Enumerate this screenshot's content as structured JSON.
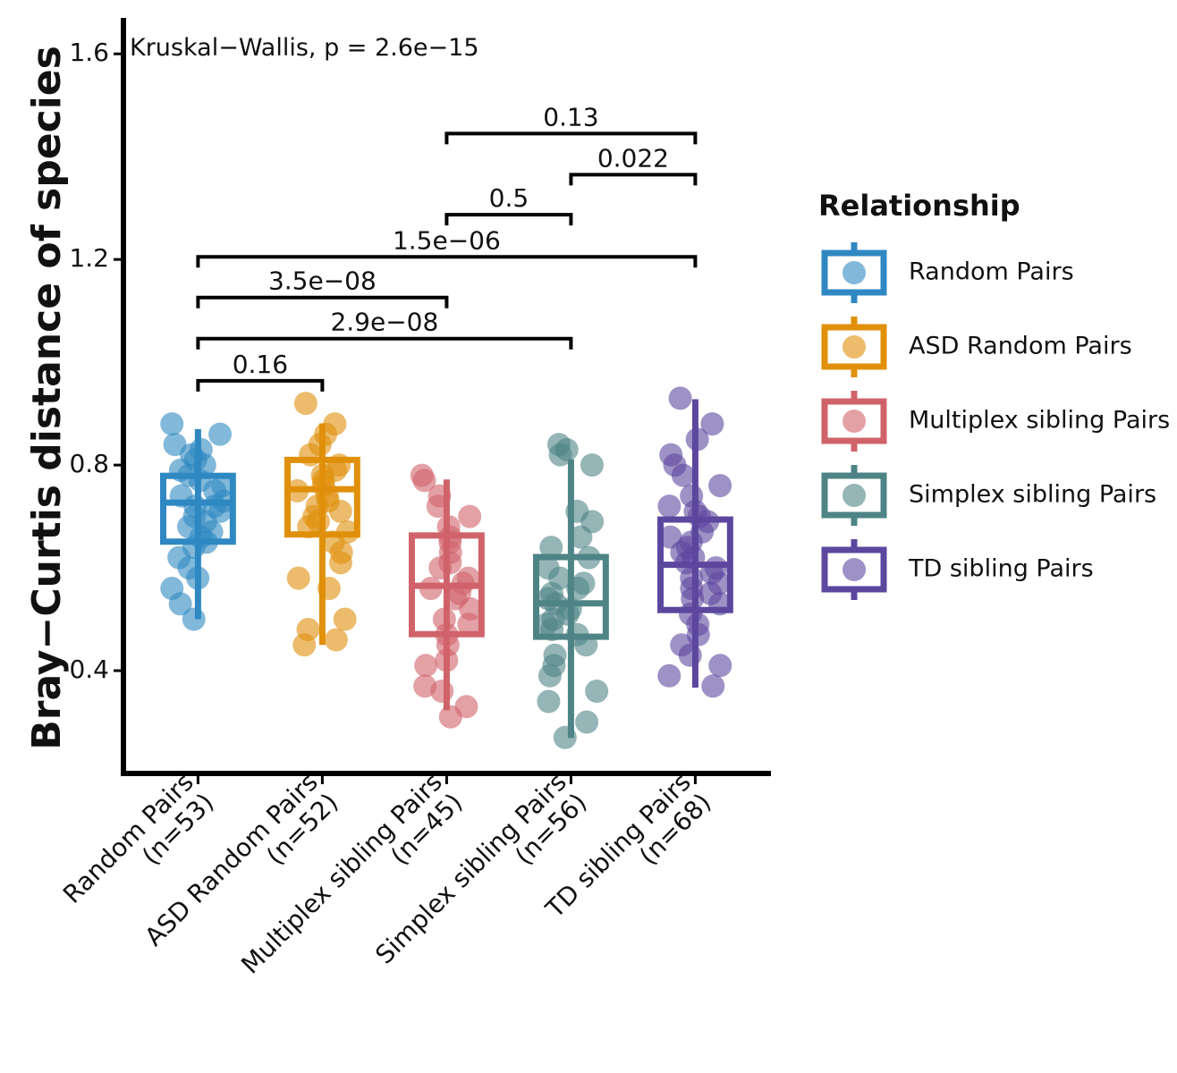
{
  "chart_data": {
    "type": "box",
    "annotation": "Kruskal−Wallis, p = 2.6e−15",
    "y_label": "Bray−Curtis distance of species",
    "legend_title": "Relationship",
    "ylim": [
      0.2,
      1.67
    ],
    "yticks": [
      0.4,
      0.8,
      1.2,
      1.6
    ],
    "categories": [
      "Random Pairs\n(n=53)",
      "ASD Random Pairs\n(n=52)",
      "Multiplex sibling Pairs\n(n=45)",
      "Simplex sibling Pairs\n(n=56)",
      "TD sibling Pairs\n(n=68)"
    ],
    "series": [
      {
        "name": "Random Pairs",
        "color": "#2f88c2",
        "min": 0.5,
        "q1": 0.651,
        "median": 0.727,
        "q3": 0.779,
        "max": 0.87,
        "points": [
          0.88,
          0.86,
          0.84,
          0.83,
          0.82,
          0.81,
          0.8,
          0.79,
          0.78,
          0.77,
          0.76,
          0.75,
          0.74,
          0.73,
          0.72,
          0.72,
          0.71,
          0.7,
          0.69,
          0.68,
          0.67,
          0.66,
          0.65,
          0.64,
          0.62,
          0.6,
          0.58,
          0.56,
          0.53,
          0.5
        ]
      },
      {
        "name": "ASD Random Pairs",
        "color": "#e0900a",
        "min": 0.45,
        "q1": 0.665,
        "median": 0.753,
        "q3": 0.81,
        "max": 0.881,
        "points": [
          0.92,
          0.88,
          0.86,
          0.84,
          0.82,
          0.8,
          0.79,
          0.78,
          0.77,
          0.76,
          0.75,
          0.74,
          0.73,
          0.72,
          0.71,
          0.7,
          0.69,
          0.68,
          0.67,
          0.65,
          0.63,
          0.61,
          0.58,
          0.56,
          0.5,
          0.48,
          0.46,
          0.45
        ]
      },
      {
        "name": "Multiplex sibling Pairs",
        "color": "#d0636a",
        "min": 0.323,
        "q1": 0.471,
        "median": 0.565,
        "q3": 0.663,
        "max": 0.772,
        "points": [
          0.78,
          0.77,
          0.74,
          0.72,
          0.7,
          0.68,
          0.66,
          0.65,
          0.63,
          0.61,
          0.6,
          0.58,
          0.57,
          0.56,
          0.55,
          0.54,
          0.52,
          0.5,
          0.49,
          0.47,
          0.45,
          0.42,
          0.41,
          0.37,
          0.36,
          0.33,
          0.31
        ]
      },
      {
        "name": "Simplex sibling Pairs",
        "color": "#4e8486",
        "min": 0.269,
        "q1": 0.466,
        "median": 0.531,
        "q3": 0.621,
        "max": 0.811,
        "points": [
          0.84,
          0.83,
          0.82,
          0.8,
          0.71,
          0.69,
          0.66,
          0.64,
          0.62,
          0.6,
          0.58,
          0.57,
          0.56,
          0.55,
          0.54,
          0.53,
          0.52,
          0.51,
          0.5,
          0.49,
          0.48,
          0.47,
          0.45,
          0.43,
          0.41,
          0.39,
          0.36,
          0.34,
          0.3,
          0.27
        ]
      },
      {
        "name": "TD sibling Pairs",
        "color": "#5b479e",
        "min": 0.367,
        "q1": 0.518,
        "median": 0.606,
        "q3": 0.694,
        "max": 0.928,
        "points": [
          0.93,
          0.88,
          0.85,
          0.82,
          0.8,
          0.78,
          0.76,
          0.74,
          0.72,
          0.71,
          0.7,
          0.69,
          0.67,
          0.66,
          0.65,
          0.64,
          0.63,
          0.62,
          0.61,
          0.6,
          0.59,
          0.58,
          0.57,
          0.56,
          0.55,
          0.54,
          0.53,
          0.51,
          0.49,
          0.47,
          0.45,
          0.43,
          0.41,
          0.39,
          0.37
        ]
      }
    ],
    "comparisons": [
      {
        "from": 0,
        "to": 1,
        "y": 0.964,
        "label": "0.16"
      },
      {
        "from": 0,
        "to": 3,
        "y": 1.046,
        "label": "2.9e−08"
      },
      {
        "from": 0,
        "to": 2,
        "y": 1.126,
        "label": "3.5e−08"
      },
      {
        "from": 0,
        "to": 4,
        "y": 1.205,
        "label": "1.5e−06"
      },
      {
        "from": 2,
        "to": 3,
        "y": 1.287,
        "label": "0.5"
      },
      {
        "from": 3,
        "to": 4,
        "y": 1.365,
        "label": "0.022"
      },
      {
        "from": 2,
        "to": 4,
        "y": 1.445,
        "label": "0.13"
      }
    ]
  }
}
